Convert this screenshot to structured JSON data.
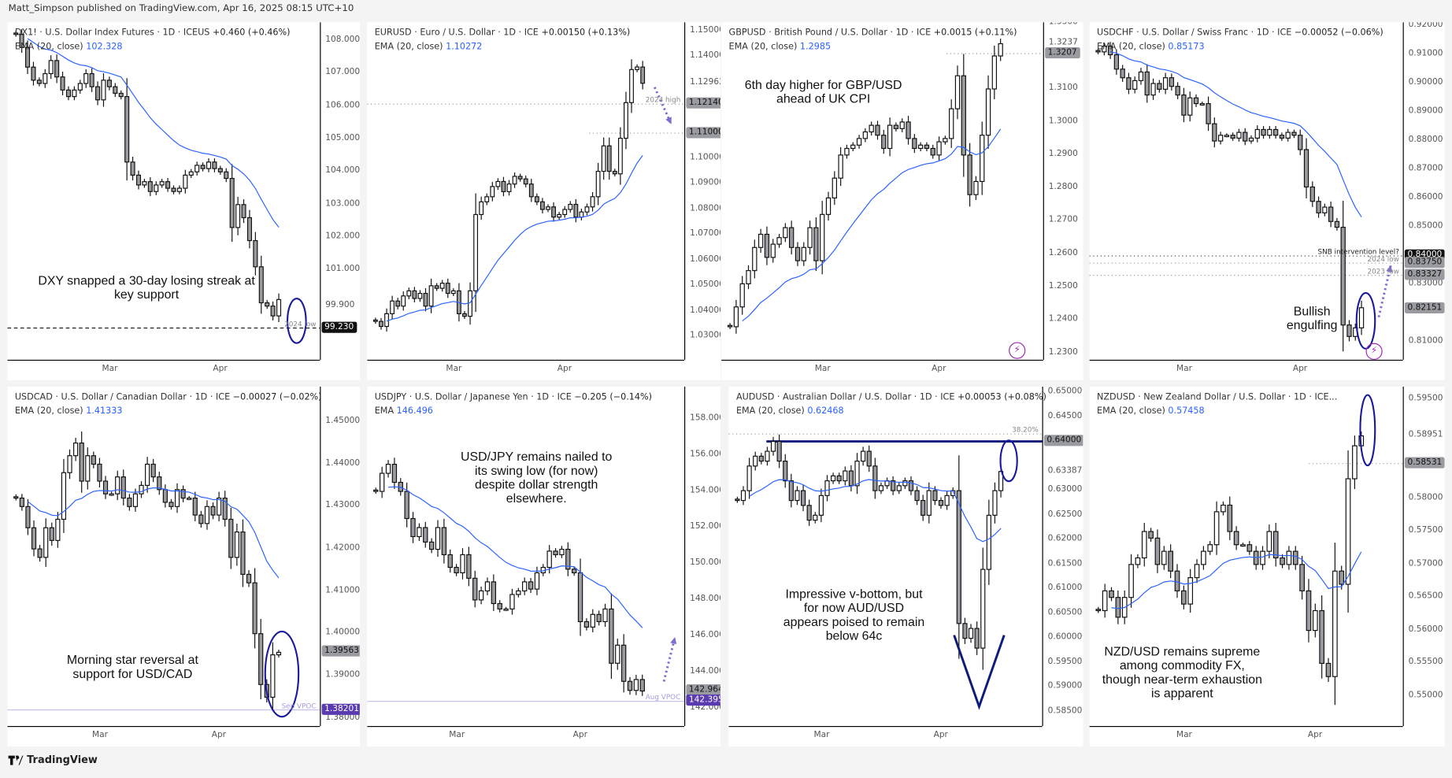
{
  "published": "Matt_Simpson published on TradingView.com, Apr 16, 2025 08:15 UTC+10",
  "footer": {
    "logo": "TradingView",
    "logo_icon": "tradingview-logo-icon"
  },
  "colors": {
    "ema": "#2962ff",
    "up_candle": "#ffffff",
    "down_candle": "#9a9ba0",
    "annotation_ellipse": "#1a1a9c",
    "arrow": "#7b6fd0",
    "vpoc": "#c8c0ee",
    "resistance": "#0d1b7a"
  },
  "chart_data": [
    {
      "type": "candlestick",
      "symbol": "DX1! · U.S. Dollar Index Futures · 1D · ICEUS",
      "change": "+0.460 (+0.46%)",
      "ema_label": "EMA (20, close)",
      "ema_value": "102.328",
      "ylim": [
        98.26,
        108.57
      ],
      "yticks": [
        "108.000",
        "107.000",
        "106.000",
        "105.000",
        "104.000",
        "103.000",
        "102.000",
        "101.000",
        "99.900"
      ],
      "months": [
        {
          "label": "Mar",
          "index": 16
        },
        {
          "label": "Apr",
          "index": 35
        }
      ],
      "closes": [
        108.2,
        107.8,
        107.2,
        106.8,
        106.7,
        107.0,
        107.4,
        106.9,
        106.5,
        106.3,
        106.5,
        106.7,
        107.0,
        106.6,
        106.2,
        106.8,
        106.6,
        106.4,
        106.3,
        104.3,
        103.9,
        103.6,
        103.7,
        103.4,
        103.6,
        103.7,
        103.5,
        103.4,
        103.5,
        103.9,
        104.0,
        104.2,
        104.1,
        104.3,
        104.1,
        104.0,
        103.8,
        102.3,
        103.0,
        102.6,
        101.9,
        101.1,
        100.0,
        99.9,
        99.6,
        100.1
      ],
      "price_labels": [
        {
          "value": 99.23,
          "text": "99.230",
          "style": "black"
        }
      ],
      "levels": [
        {
          "value": 99.23,
          "label": "2024 low",
          "style": "dashed"
        }
      ],
      "annotation": "DXY snapped a 30-day losing streak at key support"
    },
    {
      "type": "candlestick",
      "symbol": "EURUSD · Euro / U.S. Dollar · 1D · ICE",
      "change": "+0.00150 (+0.13%)",
      "ema_label": "EMA (20, close)",
      "ema_value": "1.10272",
      "ylim": [
        1.0209,
        1.1536
      ],
      "yticks": [
        "1.15000",
        "1.14000",
        "1.12962",
        "1.10000",
        "1.09000",
        "1.08000",
        "1.07000",
        "1.06000",
        "1.05000",
        "1.04000",
        "1.03000"
      ],
      "months": [
        {
          "label": "Mar",
          "index": 14
        },
        {
          "label": "Apr",
          "index": 34
        }
      ],
      "closes": [
        1.036,
        1.034,
        1.039,
        1.044,
        1.042,
        1.046,
        1.048,
        1.045,
        1.047,
        1.042,
        1.05,
        1.049,
        1.051,
        1.047,
        1.048,
        1.039,
        1.038,
        1.048,
        1.078,
        1.083,
        1.085,
        1.089,
        1.091,
        1.087,
        1.09,
        1.093,
        1.092,
        1.09,
        1.085,
        1.083,
        1.08,
        1.081,
        1.077,
        1.078,
        1.08,
        1.082,
        1.077,
        1.079,
        1.081,
        1.085,
        1.095,
        1.105,
        1.095,
        1.094,
        1.108,
        1.122,
        1.135,
        1.136,
        1.1296
      ],
      "price_labels": [
        {
          "value": 1.1214,
          "text": "1.12140",
          "style": "grey"
        },
        {
          "value": 1.11,
          "text": "1.11000",
          "style": "grey"
        }
      ],
      "levels": [
        {
          "value": 1.1214,
          "label": "2024 high",
          "style": "dotted"
        },
        {
          "value": 1.11,
          "label": "",
          "style": "dotted-short"
        }
      ],
      "annotation": ""
    },
    {
      "type": "candlestick",
      "symbol": "GBPUSD · British Pound / U.S. Dollar · 1D · ICE",
      "change": "+0.0015 (+0.11%)",
      "ema_label": "EMA (20, close)",
      "ema_value": "1.2985",
      "ylim": [
        1.228,
        1.3302
      ],
      "yticks": [
        "1.3300",
        "1.3237",
        "1.3100",
        "1.3000",
        "1.2900",
        "1.2800",
        "1.2700",
        "1.2600",
        "1.2500",
        "1.2400",
        "1.2300"
      ],
      "months": [
        {
          "label": "Mar",
          "index": 15
        },
        {
          "label": "Apr",
          "index": 34
        }
      ],
      "closes": [
        1.238,
        1.244,
        1.251,
        1.255,
        1.262,
        1.266,
        1.259,
        1.263,
        1.265,
        1.268,
        1.262,
        1.258,
        1.262,
        1.268,
        1.258,
        1.272,
        1.277,
        1.283,
        1.29,
        1.292,
        1.293,
        1.295,
        1.297,
        1.299,
        1.296,
        1.292,
        1.299,
        1.298,
        1.3,
        1.295,
        1.292,
        1.293,
        1.292,
        1.29,
        1.294,
        1.295,
        1.304,
        1.314,
        1.29,
        1.278,
        1.282,
        1.296,
        1.31,
        1.32,
        1.3237
      ],
      "price_labels": [
        {
          "value": 1.3207,
          "text": "1.3207",
          "style": "grey"
        }
      ],
      "levels": [
        {
          "value": 1.3207,
          "label": "",
          "style": "dotted-short"
        }
      ],
      "annotation": "6th day higher for GBP/USD ahead of UK CPI"
    },
    {
      "type": "candlestick",
      "symbol": "USDCHF · U.S. Dollar / Swiss Franc · 1D · ICE",
      "change": "−0.00052 (−0.06%)",
      "ema_label": "EMA (20, close)",
      "ema_value": "0.85173",
      "ylim": [
        0.8039,
        0.9213
      ],
      "yticks": [
        "0.92000",
        "0.91000",
        "0.90000",
        "0.89000",
        "0.88000",
        "0.87000",
        "0.86000",
        "0.85000",
        "0.83000",
        "0.81000"
      ],
      "months": [
        {
          "label": "Mar",
          "index": 14
        },
        {
          "label": "Apr",
          "index": 33
        }
      ],
      "closes": [
        0.911,
        0.913,
        0.91,
        0.905,
        0.902,
        0.898,
        0.901,
        0.904,
        0.896,
        0.9,
        0.898,
        0.902,
        0.899,
        0.896,
        0.889,
        0.895,
        0.893,
        0.893,
        0.886,
        0.88,
        0.882,
        0.882,
        0.881,
        0.883,
        0.88,
        0.881,
        0.884,
        0.882,
        0.884,
        0.882,
        0.881,
        0.883,
        0.882,
        0.877,
        0.864,
        0.859,
        0.855,
        0.857,
        0.852,
        0.85,
        0.816,
        0.812,
        0.815,
        0.822
      ],
      "price_labels": [
        {
          "value": 0.84,
          "text": "0.84000",
          "style": "black"
        },
        {
          "value": 0.8375,
          "text": "0.83750",
          "style": "grey"
        },
        {
          "value": 0.83327,
          "text": "0.83327",
          "style": "grey"
        },
        {
          "value": 0.82151,
          "text": "0.82151",
          "style": "grey"
        }
      ],
      "levels": [
        {
          "value": 0.84,
          "label": "SNB intervention level?",
          "style": "dotted-dark"
        },
        {
          "value": 0.8375,
          "label": "2024 low",
          "style": "dotted"
        },
        {
          "value": 0.83327,
          "label": "2023 low",
          "style": "dotted"
        }
      ],
      "annotation": "Bullish engulfing"
    },
    {
      "type": "candlestick",
      "symbol": "USDCAD · U.S. Dollar / Canadian Dollar · 1D · ICE",
      "change": "−0.00027 (−0.02%)",
      "ema_label": "EMA (20, close)",
      "ema_value": "1.41333",
      "ylim": [
        1.3782,
        1.4583
      ],
      "yticks": [
        "1.45000",
        "1.44000",
        "1.43000",
        "1.42000",
        "1.41000",
        "1.40000",
        "1.39000",
        "1.38000"
      ],
      "months": [
        {
          "label": "Mar",
          "index": 14
        },
        {
          "label": "Apr",
          "index": 34
        }
      ],
      "closes": [
        1.432,
        1.43,
        1.425,
        1.42,
        1.418,
        1.425,
        1.422,
        1.427,
        1.438,
        1.442,
        1.445,
        1.436,
        1.442,
        1.44,
        1.436,
        1.433,
        1.433,
        1.437,
        1.432,
        1.43,
        1.433,
        1.435,
        1.44,
        1.437,
        1.434,
        1.431,
        1.43,
        1.434,
        1.432,
        1.432,
        1.428,
        1.426,
        1.43,
        1.428,
        1.432,
        1.427,
        1.418,
        1.424,
        1.414,
        1.412,
        1.4,
        1.388,
        1.385,
        1.395,
        1.3956
      ],
      "price_labels": [
        {
          "value": 1.39563,
          "text": "1.39563",
          "style": "grey"
        },
        {
          "value": 1.38201,
          "text": "1.38201",
          "style": "purple"
        }
      ],
      "levels": [
        {
          "value": 1.38201,
          "label": "Sep VPOC",
          "style": "vpoc"
        }
      ],
      "annotation": "Morning star reversal at support for USD/CAD"
    },
    {
      "type": "candlestick",
      "symbol": "USDJPY · U.S. Dollar / Japanese Yen · 1D · ICE",
      "change": "−0.205 (−0.14%)",
      "ema_label": "EMA",
      "ema_value": "146.496",
      "ylim": [
        141.03,
        159.79
      ],
      "yticks": [
        "158.000",
        "156.000",
        "154.000",
        "152.000",
        "150.000",
        "148.000",
        "146.000",
        "144.000",
        "142.000"
      ],
      "months": [
        {
          "label": "Mar",
          "index": 13
        },
        {
          "label": "Apr",
          "index": 33
        }
      ],
      "closes": [
        154.0,
        155.0,
        155.5,
        154.5,
        154.0,
        152.5,
        151.5,
        152.0,
        151.2,
        150.8,
        152.0,
        150.5,
        149.8,
        149.5,
        150.5,
        149.2,
        148.0,
        148.5,
        149.0,
        147.8,
        147.5,
        147.5,
        148.3,
        148.5,
        149.0,
        148.6,
        149.5,
        149.8,
        150.7,
        150.5,
        150.8,
        149.7,
        149.5,
        146.8,
        146.5,
        147.2,
        146.8,
        147.5,
        144.5,
        145.5,
        143.5,
        143.0,
        143.6,
        142.964
      ],
      "price_labels": [
        {
          "value": 142.964,
          "text": "142.964",
          "style": "grey"
        },
        {
          "value": 142.395,
          "text": "142.395",
          "style": "purple"
        }
      ],
      "levels": [
        {
          "value": 142.395,
          "label": "Aug VPOC",
          "style": "vpoc"
        }
      ],
      "annotation": "USD/JPY remains nailed to its swing low (for now) despite dollar strength elsewhere."
    },
    {
      "type": "candlestick",
      "symbol": "AUDUSD · Australian Dollar / U.S. Dollar · 1D · ICE",
      "change": "+0.00053 (+0.08%)",
      "ema_label": "EMA (20, close)",
      "ema_value": "0.62468",
      "ylim": [
        0.58217,
        0.65113
      ],
      "yticks": [
        "0.65000",
        "0.64500",
        "0.63387",
        "0.63000",
        "0.62500",
        "0.62000",
        "0.61500",
        "0.61000",
        "0.60500",
        "0.60000",
        "0.59500",
        "0.59000",
        "0.58500"
      ],
      "months": [
        {
          "label": "Mar",
          "index": 14
        },
        {
          "label": "Apr",
          "index": 34
        }
      ],
      "closes": [
        0.628,
        0.63,
        0.635,
        0.637,
        0.636,
        0.638,
        0.64,
        0.636,
        0.632,
        0.628,
        0.63,
        0.627,
        0.624,
        0.625,
        0.629,
        0.632,
        0.633,
        0.632,
        0.634,
        0.631,
        0.636,
        0.638,
        0.635,
        0.63,
        0.631,
        0.632,
        0.63,
        0.631,
        0.632,
        0.63,
        0.628,
        0.625,
        0.63,
        0.628,
        0.627,
        0.629,
        0.63,
        0.603,
        0.6,
        0.602,
        0.598,
        0.614,
        0.625,
        0.63,
        0.6339
      ],
      "price_labels": [
        {
          "value": 0.64,
          "text": "0.64000",
          "style": "grey"
        }
      ],
      "levels": [
        {
          "value": 0.6415,
          "label": "38.20%",
          "style": "dotted"
        },
        {
          "value": 0.64,
          "label": "",
          "style": "resistance"
        }
      ],
      "annotation": "Impressive v-bottom, but for now AUD/USD appears poised to remain below 64c"
    },
    {
      "type": "candlestick",
      "symbol": "NZDUSD · New Zealand Dollar / U.S. Dollar · 1D · ICE...",
      "change": "",
      "ema_label": "EMA (20, close)",
      "ema_value": "0.57458",
      "ylim": [
        0.5455,
        0.59697
      ],
      "yticks": [
        "0.59500",
        "0.58951",
        "0.58000",
        "0.57500",
        "0.57000",
        "0.56500",
        "0.56000",
        "0.55500",
        "0.55000"
      ],
      "months": [
        {
          "label": "Mar",
          "index": 13
        },
        {
          "label": "Apr",
          "index": 33
        }
      ],
      "closes": [
        0.563,
        0.566,
        0.565,
        0.562,
        0.565,
        0.57,
        0.571,
        0.575,
        0.574,
        0.57,
        0.572,
        0.569,
        0.566,
        0.564,
        0.568,
        0.57,
        0.572,
        0.573,
        0.578,
        0.579,
        0.575,
        0.573,
        0.573,
        0.572,
        0.57,
        0.572,
        0.575,
        0.571,
        0.57,
        0.572,
        0.57,
        0.566,
        0.56,
        0.563,
        0.555,
        0.553,
        0.569,
        0.567,
        0.583,
        0.588,
        0.5895
      ],
      "price_labels": [
        {
          "value": 0.58531,
          "text": "0.58531",
          "style": "grey"
        }
      ],
      "levels": [
        {
          "value": 0.58531,
          "label": "",
          "style": "dotted-short"
        }
      ],
      "annotation": "NZD/USD remains supreme among commodity FX, though near-term exhaustion is apparent"
    }
  ]
}
